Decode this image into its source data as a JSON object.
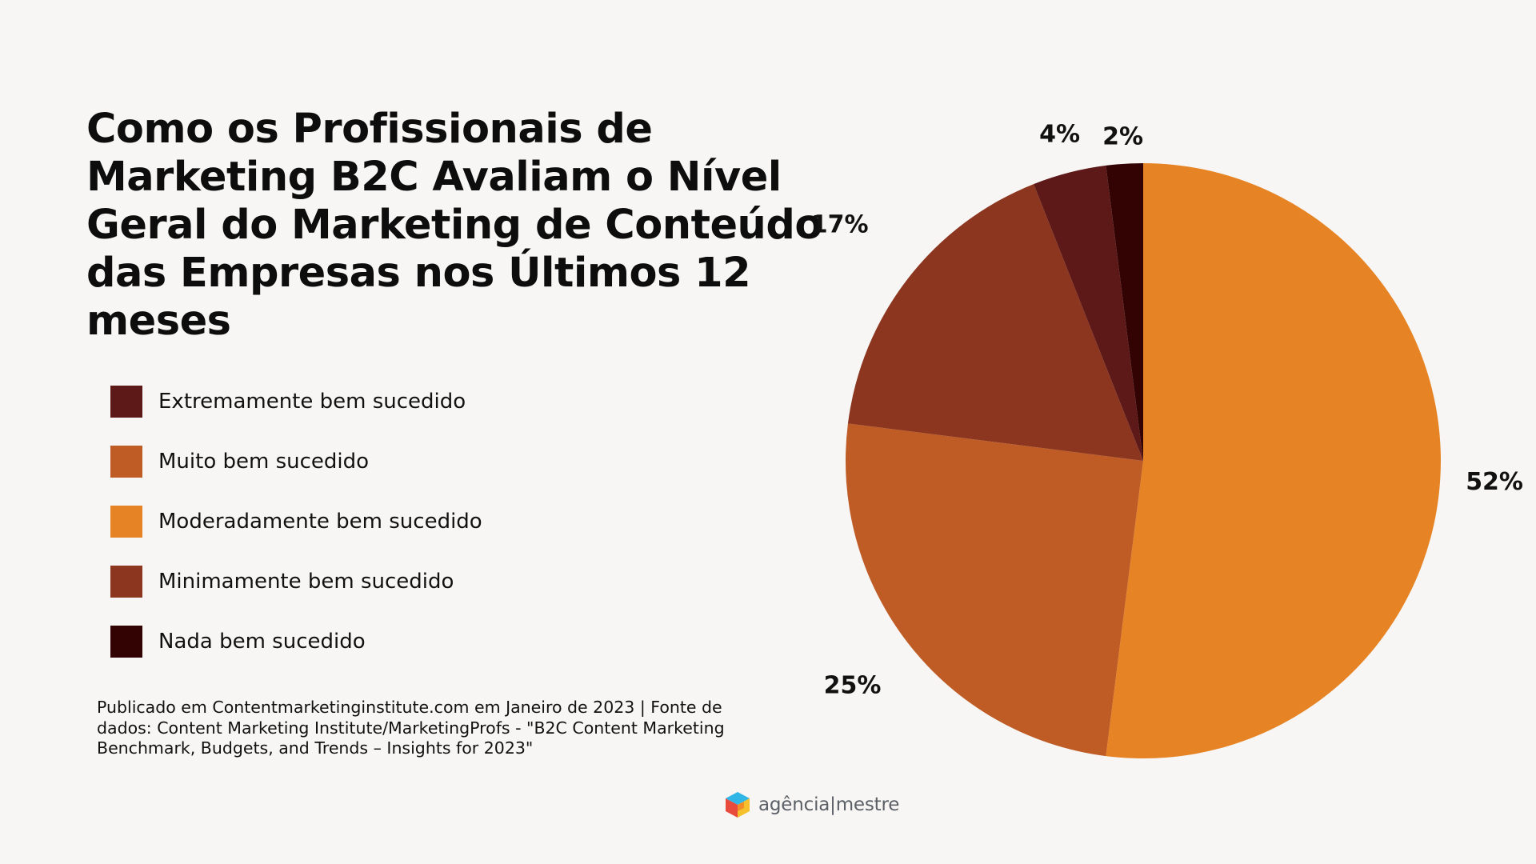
{
  "header": {
    "title": "Como os Profissionais de Marketing B2C Avaliam o Nível Geral do Marketing de Conteúdo das Empresas nos Últimos 12 meses"
  },
  "chart_data": {
    "type": "pie",
    "title": "Como os Profissionais de Marketing B2C Avaliam o Nível Geral do Marketing de Conteúdo das Empresas nos Últimos 12 meses",
    "legend_position": "left",
    "start_angle_deg": 0,
    "direction": "clockwise",
    "slices": [
      {
        "name": "Moderadamente bem sucedido",
        "value": 52,
        "label": "52%",
        "color": "#e68324"
      },
      {
        "name": "Muito bem sucedido",
        "value": 25,
        "label": "25%",
        "color": "#bf5c26"
      },
      {
        "name": "Minimamente bem sucedido",
        "value": 17,
        "label": "17%",
        "color": "#8c361f"
      },
      {
        "name": "Extremamente bem sucedido",
        "value": 4,
        "label": "4%",
        "color": "#5d1818"
      },
      {
        "name": "Nada bem sucedido",
        "value": 2,
        "label": "2%",
        "color": "#330303"
      }
    ],
    "legend": [
      {
        "name": "Extremamente bem sucedido",
        "color": "#5d1818"
      },
      {
        "name": "Muito bem sucedido",
        "color": "#bf5c26"
      },
      {
        "name": "Moderadamente bem sucedido",
        "color": "#e68324"
      },
      {
        "name": "Minimamente bem sucedido",
        "color": "#8c361f"
      },
      {
        "name": "Nada bem sucedido",
        "color": "#330303"
      }
    ]
  },
  "source": {
    "text": "Publicado em Contentmarketinginstitute.com em Janeiro de 2023 | Fonte de dados: Content Marketing Institute/MarketingProfs - \"B2C Content Marketing Benchmark, Budgets, and Trends – Insights for 2023\""
  },
  "brand": {
    "logo_icon": "cube-logo-icon",
    "name": "agência|mestre"
  }
}
